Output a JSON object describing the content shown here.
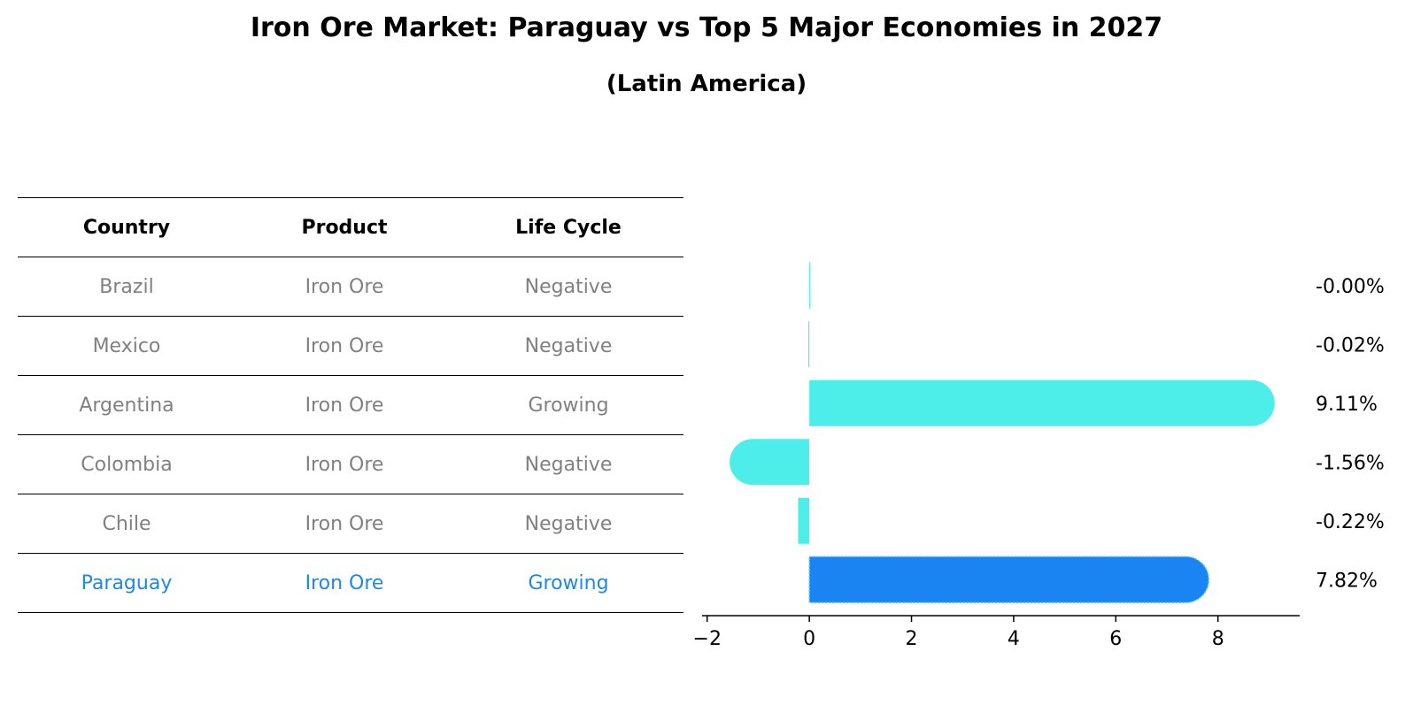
{
  "title": "Iron Ore Market: Paraguay vs Top 5 Major Economies in 2027",
  "subtitle": "(Latin America)",
  "table": {
    "headers": [
      "Country",
      "Product",
      "Life Cycle"
    ],
    "rows": [
      {
        "country": "Brazil",
        "product": "Iron Ore",
        "life_cycle": "Negative",
        "highlight": false
      },
      {
        "country": "Mexico",
        "product": "Iron Ore",
        "life_cycle": "Negative",
        "highlight": false
      },
      {
        "country": "Argentina",
        "product": "Iron Ore",
        "life_cycle": "Growing",
        "highlight": false
      },
      {
        "country": "Colombia",
        "product": "Iron Ore",
        "life_cycle": "Negative",
        "highlight": false
      },
      {
        "country": "Chile",
        "product": "Iron Ore",
        "life_cycle": "Negative",
        "highlight": false
      },
      {
        "country": "Paraguay",
        "product": "Iron Ore",
        "life_cycle": "Growing",
        "highlight": true
      }
    ]
  },
  "colors": {
    "bar": "#4deeea",
    "highlight_bar": "#1a85f2",
    "highlight_text": "#1e88e5",
    "muted_text": "#808080"
  },
  "chart_data": {
    "type": "bar",
    "orientation": "horizontal",
    "categories": [
      "Brazil",
      "Mexico",
      "Argentina",
      "Colombia",
      "Chile",
      "Paraguay"
    ],
    "values": [
      -0.001,
      -0.02,
      9.11,
      -1.56,
      -0.22,
      7.82
    ],
    "labels": [
      "-0.00%",
      "-0.02%",
      "9.11%",
      "-1.56%",
      "-0.22%",
      "7.82%"
    ],
    "highlight": "Paraguay",
    "xlim": [
      -2.1,
      9.6
    ],
    "xticks": [
      -2,
      0,
      2,
      4,
      6,
      8
    ],
    "xtick_labels": [
      "−2",
      "0",
      "2",
      "4",
      "6",
      "8"
    ],
    "xlabel": "",
    "ylabel": "",
    "grid": false
  }
}
